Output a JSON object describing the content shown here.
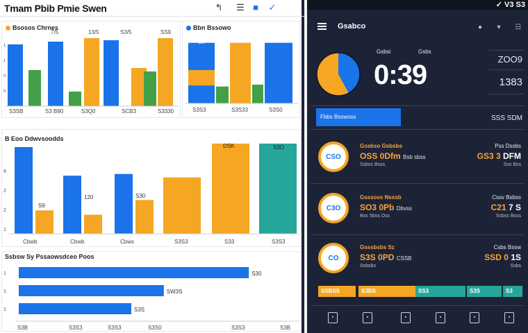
{
  "app": {
    "title": "Tmam Pbib Pmie Swen"
  },
  "left": {
    "card1": {
      "title": "Bsosos Chrnes",
      "left_labels": [
        "1",
        "1",
        "0",
        "0"
      ],
      "bars": [
        {
          "color": "#1a73e8",
          "value": 89
        },
        {
          "color": "#43a047",
          "value": 52
        },
        {
          "color": "#1a73e8",
          "value": 93
        },
        {
          "color": "#43a047",
          "value": 21
        },
        {
          "color": "#f5a623",
          "value": 98
        },
        {
          "color": "#1a73e8",
          "value": 95
        },
        {
          "color": "#f5a623",
          "value": 55
        },
        {
          "color": "#43a047",
          "value": 50
        },
        {
          "color": "#f5a623",
          "value": 98
        }
      ],
      "top_labels": [
        "7/5",
        "13/5",
        "S3/5",
        "SS9"
      ],
      "x_labels": [
        "S3SB",
        "S3 B90",
        "S3Q0",
        "SCB3",
        "S3330"
      ]
    },
    "card2": {
      "title": "Bbn Bssowo",
      "bars": [
        {
          "color": "#1a73e8",
          "value": 97
        },
        {
          "color": "#f5a623",
          "value": 37
        },
        {
          "color": "#43a047",
          "value": 27
        },
        {
          "color": "#f5a623",
          "value": 97
        },
        {
          "color": "#43a047",
          "value": 30
        },
        {
          "color": "#1a73e8",
          "value": 97
        }
      ],
      "top_labels": [
        "S0"
      ],
      "x_labels": [
        "S3S3",
        "S3S33",
        "S3S0"
      ]
    },
    "card3": {
      "title": "B Eoo Ddwvsoodds",
      "y_labels": [
        "8",
        "2",
        "2",
        "1"
      ],
      "bars": [
        {
          "color": "#1a73e8",
          "value": 100
        },
        {
          "color": "#f5a623",
          "value": 27
        },
        {
          "color": "#1a73e8",
          "value": 67
        },
        {
          "color": "#f5a623",
          "value": 22
        },
        {
          "color": "#1a73e8",
          "value": 69
        },
        {
          "color": "#f5a623",
          "value": 39
        },
        {
          "color": "#f5a623",
          "value": 65
        },
        {
          "color": "#f5a623",
          "value": 104
        },
        {
          "color": "#26a69a",
          "value": 104
        }
      ],
      "top_labels": [
        "S9",
        "120",
        "S30",
        "DSK",
        "S3O"
      ],
      "x_labels": [
        "Cbwb",
        "Cbwb",
        "Cbws",
        "S3S3",
        "S33",
        "S3S3"
      ]
    },
    "card4": {
      "title": "Ssbsw Sy Pssaowsdceo Poos",
      "rows": [
        {
          "label": "1",
          "value": 0.92,
          "text": "S30"
        },
        {
          "label": "1",
          "value": 0.58,
          "text": "SW3S"
        },
        {
          "label": "1",
          "value": 0.45,
          "text": "S3S"
        }
      ],
      "x_labels": [
        "S3B",
        "S3S3",
        "S3S3",
        "S3S0",
        "S3S3",
        "S3B"
      ]
    }
  },
  "right": {
    "status": "✓ V3 S3",
    "title": "Gsabco",
    "pie": {
      "slices": [
        {
          "color": "#1a73e8",
          "value": 0.42
        },
        {
          "color": "#f5a623",
          "value": 0.58
        }
      ]
    },
    "hdr_a": "Gsbsi",
    "hdr_b": "Gsbs",
    "timer": "0:39",
    "side_1": "ZOO9",
    "side_2": "1383",
    "tab": "Fbbs Bsswsss",
    "tab_right": "SSS SDM",
    "rows": [
      {
        "ring": "CSO",
        "l1": "Gssbso Gsbsbs",
        "l2": "OSS 0Dfm",
        "l2s": "Bsb sbss",
        "l3": "Ssbss Bsss",
        "r1": "Pss Dssbs",
        "r2": "GS3 3",
        "r2s": "DFM",
        "r3": "Sss Bss"
      },
      {
        "ring": "C3O",
        "l1": "Gsssoss Nsssb",
        "l2": "SO3 0Pb",
        "l2s": "Dbvss",
        "l3": "Bss Sbss Dss",
        "r1": "Cssv Bsbss",
        "r2": "C21",
        "r2s": "7 S",
        "r3": "Ssbss Bsss"
      },
      {
        "ring": "CO",
        "l1": "Gsssbsbs Sz",
        "l2": "S3S 0PD",
        "l2s": "CSSB",
        "l3": "Ssbsbs",
        "r1": "Csbs Bssw",
        "r2": "SSD 0",
        "r2s": "1S",
        "r3": "Ssbs"
      }
    ],
    "segments": [
      {
        "text": "SSBSS",
        "color": "#f5a623"
      },
      {
        "text": "S3BS",
        "color": "#f5a623"
      },
      {
        "text": "SS3",
        "color": "#26a69a"
      },
      {
        "text": "S3S",
        "color": "#26a69a"
      },
      {
        "text": "S3",
        "color": "#26a69a"
      }
    ]
  }
}
